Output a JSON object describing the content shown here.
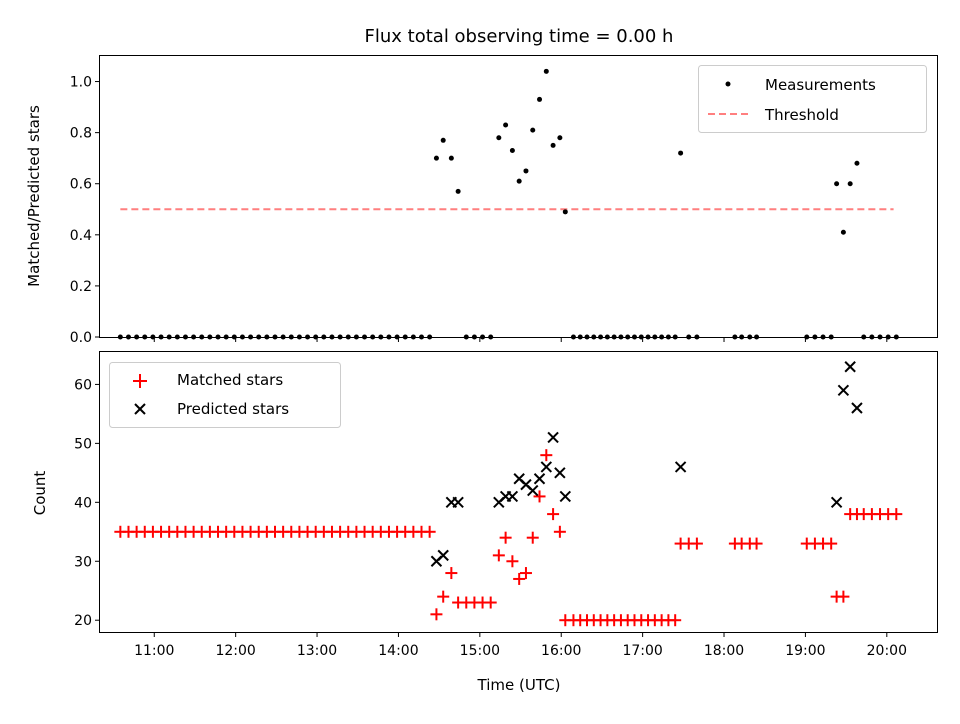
{
  "chart_data": {
    "title": "Flux total observing time = 0.00 h",
    "top": {
      "type": "scatter",
      "ylabel": "Matched/Predicted stars",
      "ylim": [
        0,
        1.1
      ],
      "yticks": [
        "0.0",
        "0.2",
        "0.4",
        "0.6",
        "0.8",
        "1.0"
      ],
      "legend": [
        "Measurements",
        "Threshold"
      ],
      "legend_loc": "upper right",
      "threshold": {
        "value": 0.5,
        "x_range": [
          "10:35",
          "20:05"
        ],
        "color": "#ff7f7f"
      },
      "measurements": [
        [
          "10:35",
          0
        ],
        [
          "10:41",
          0
        ],
        [
          "10:47",
          0
        ],
        [
          "10:53",
          0
        ],
        [
          "10:59",
          0
        ],
        [
          "11:05",
          0
        ],
        [
          "11:11",
          0
        ],
        [
          "11:17",
          0
        ],
        [
          "11:23",
          0
        ],
        [
          "11:29",
          0
        ],
        [
          "11:35",
          0
        ],
        [
          "11:41",
          0
        ],
        [
          "11:47",
          0
        ],
        [
          "11:53",
          0
        ],
        [
          "11:59",
          0
        ],
        [
          "12:05",
          0
        ],
        [
          "12:11",
          0
        ],
        [
          "12:17",
          0
        ],
        [
          "12:23",
          0
        ],
        [
          "12:29",
          0
        ],
        [
          "12:35",
          0
        ],
        [
          "12:41",
          0
        ],
        [
          "12:47",
          0
        ],
        [
          "12:53",
          0
        ],
        [
          "12:59",
          0
        ],
        [
          "13:05",
          0
        ],
        [
          "13:11",
          0
        ],
        [
          "13:17",
          0
        ],
        [
          "13:23",
          0
        ],
        [
          "13:29",
          0
        ],
        [
          "13:35",
          0
        ],
        [
          "13:41",
          0
        ],
        [
          "13:47",
          0
        ],
        [
          "13:53",
          0
        ],
        [
          "13:59",
          0
        ],
        [
          "14:05",
          0
        ],
        [
          "14:11",
          0
        ],
        [
          "14:17",
          0
        ],
        [
          "14:23",
          0
        ],
        [
          "14:28",
          0.7
        ],
        [
          "14:33",
          0.77
        ],
        [
          "14:39",
          0.7
        ],
        [
          "14:44",
          0.57
        ],
        [
          "14:50",
          0
        ],
        [
          "14:56",
          0
        ],
        [
          "15:02",
          0
        ],
        [
          "15:08",
          0
        ],
        [
          "15:14",
          0.78
        ],
        [
          "15:19",
          0.83
        ],
        [
          "15:24",
          0.73
        ],
        [
          "15:29",
          0.61
        ],
        [
          "15:34",
          0.65
        ],
        [
          "15:39",
          0.81
        ],
        [
          "15:44",
          0.93
        ],
        [
          "15:49",
          1.04
        ],
        [
          "15:54",
          0.75
        ],
        [
          "15:59",
          0.78
        ],
        [
          "16:03",
          0.49
        ],
        [
          "16:09",
          0
        ],
        [
          "16:14",
          0
        ],
        [
          "16:19",
          0
        ],
        [
          "16:24",
          0
        ],
        [
          "16:29",
          0
        ],
        [
          "16:34",
          0
        ],
        [
          "16:39",
          0
        ],
        [
          "16:44",
          0
        ],
        [
          "16:49",
          0
        ],
        [
          "16:54",
          0
        ],
        [
          "16:59",
          0
        ],
        [
          "17:04",
          0
        ],
        [
          "17:09",
          0
        ],
        [
          "17:14",
          0
        ],
        [
          "17:19",
          0
        ],
        [
          "17:24",
          0
        ],
        [
          "17:28",
          0.72
        ],
        [
          "17:34",
          0
        ],
        [
          "17:40",
          0
        ],
        [
          "18:08",
          0
        ],
        [
          "18:13",
          0
        ],
        [
          "18:19",
          0
        ],
        [
          "18:24",
          0
        ],
        [
          "19:01",
          0
        ],
        [
          "19:07",
          0
        ],
        [
          "19:13",
          0
        ],
        [
          "19:19",
          0
        ],
        [
          "19:23",
          0.6
        ],
        [
          "19:28",
          0.41
        ],
        [
          "19:33",
          0.6
        ],
        [
          "19:38",
          0.68
        ],
        [
          "19:43",
          0
        ],
        [
          "19:49",
          0
        ],
        [
          "19:55",
          0
        ],
        [
          "20:01",
          0
        ],
        [
          "20:07",
          0
        ]
      ]
    },
    "bottom": {
      "type": "scatter",
      "ylabel": "Count",
      "xlabel": "Time (UTC)",
      "ylim": [
        18,
        65.5
      ],
      "yticks": [
        "20",
        "30",
        "40",
        "50",
        "60"
      ],
      "xlim": [
        "10:20",
        "20:37"
      ],
      "xticks": [
        "11:00",
        "12:00",
        "13:00",
        "14:00",
        "15:00",
        "16:00",
        "17:00",
        "18:00",
        "19:00",
        "20:00"
      ],
      "legend": [
        "Matched stars",
        "Predicted stars"
      ],
      "legend_loc": "upper left",
      "colors": {
        "matched": "#ff0000",
        "predicted": "#000000"
      },
      "matched": [
        [
          "10:35",
          35
        ],
        [
          "10:41",
          35
        ],
        [
          "10:47",
          35
        ],
        [
          "10:53",
          35
        ],
        [
          "10:59",
          35
        ],
        [
          "11:05",
          35
        ],
        [
          "11:11",
          35
        ],
        [
          "11:17",
          35
        ],
        [
          "11:23",
          35
        ],
        [
          "11:29",
          35
        ],
        [
          "11:35",
          35
        ],
        [
          "11:41",
          35
        ],
        [
          "11:47",
          35
        ],
        [
          "11:53",
          35
        ],
        [
          "11:59",
          35
        ],
        [
          "12:05",
          35
        ],
        [
          "12:11",
          35
        ],
        [
          "12:17",
          35
        ],
        [
          "12:23",
          35
        ],
        [
          "12:29",
          35
        ],
        [
          "12:35",
          35
        ],
        [
          "12:41",
          35
        ],
        [
          "12:47",
          35
        ],
        [
          "12:53",
          35
        ],
        [
          "12:59",
          35
        ],
        [
          "13:05",
          35
        ],
        [
          "13:11",
          35
        ],
        [
          "13:17",
          35
        ],
        [
          "13:23",
          35
        ],
        [
          "13:29",
          35
        ],
        [
          "13:35",
          35
        ],
        [
          "13:41",
          35
        ],
        [
          "13:47",
          35
        ],
        [
          "13:53",
          35
        ],
        [
          "13:59",
          35
        ],
        [
          "14:05",
          35
        ],
        [
          "14:11",
          35
        ],
        [
          "14:17",
          35
        ],
        [
          "14:23",
          35
        ],
        [
          "14:28",
          21
        ],
        [
          "14:33",
          24
        ],
        [
          "14:39",
          28
        ],
        [
          "14:44",
          23
        ],
        [
          "14:50",
          23
        ],
        [
          "14:56",
          23
        ],
        [
          "15:02",
          23
        ],
        [
          "15:08",
          23
        ],
        [
          "15:14",
          31
        ],
        [
          "15:19",
          34
        ],
        [
          "15:24",
          30
        ],
        [
          "15:29",
          27
        ],
        [
          "15:34",
          28
        ],
        [
          "15:39",
          34
        ],
        [
          "15:44",
          41
        ],
        [
          "15:49",
          48
        ],
        [
          "15:54",
          38
        ],
        [
          "15:59",
          35
        ],
        [
          "16:03",
          20
        ],
        [
          "16:09",
          20
        ],
        [
          "16:14",
          20
        ],
        [
          "16:19",
          20
        ],
        [
          "16:24",
          20
        ],
        [
          "16:29",
          20
        ],
        [
          "16:34",
          20
        ],
        [
          "16:39",
          20
        ],
        [
          "16:44",
          20
        ],
        [
          "16:49",
          20
        ],
        [
          "16:54",
          20
        ],
        [
          "16:59",
          20
        ],
        [
          "17:04",
          20
        ],
        [
          "17:09",
          20
        ],
        [
          "17:14",
          20
        ],
        [
          "17:19",
          20
        ],
        [
          "17:24",
          20
        ],
        [
          "17:28",
          33
        ],
        [
          "17:34",
          33
        ],
        [
          "17:40",
          33
        ],
        [
          "18:08",
          33
        ],
        [
          "18:13",
          33
        ],
        [
          "18:19",
          33
        ],
        [
          "18:24",
          33
        ],
        [
          "19:01",
          33
        ],
        [
          "19:07",
          33
        ],
        [
          "19:13",
          33
        ],
        [
          "19:19",
          33
        ],
        [
          "19:23",
          24
        ],
        [
          "19:28",
          24
        ],
        [
          "19:33",
          38
        ],
        [
          "19:38",
          38
        ],
        [
          "19:43",
          38
        ],
        [
          "19:49",
          38
        ],
        [
          "19:55",
          38
        ],
        [
          "20:01",
          38
        ],
        [
          "20:07",
          38
        ]
      ],
      "predicted": [
        [
          "14:28",
          30
        ],
        [
          "14:33",
          31
        ],
        [
          "14:39",
          40
        ],
        [
          "14:44",
          40
        ],
        [
          "15:14",
          40
        ],
        [
          "15:19",
          41
        ],
        [
          "15:24",
          41
        ],
        [
          "15:29",
          44
        ],
        [
          "15:34",
          43
        ],
        [
          "15:39",
          42
        ],
        [
          "15:44",
          44
        ],
        [
          "15:49",
          46
        ],
        [
          "15:54",
          51
        ],
        [
          "15:59",
          45
        ],
        [
          "16:03",
          41
        ],
        [
          "17:28",
          46
        ],
        [
          "19:23",
          40
        ],
        [
          "19:28",
          59
        ],
        [
          "19:33",
          63
        ],
        [
          "19:38",
          56
        ]
      ]
    }
  }
}
